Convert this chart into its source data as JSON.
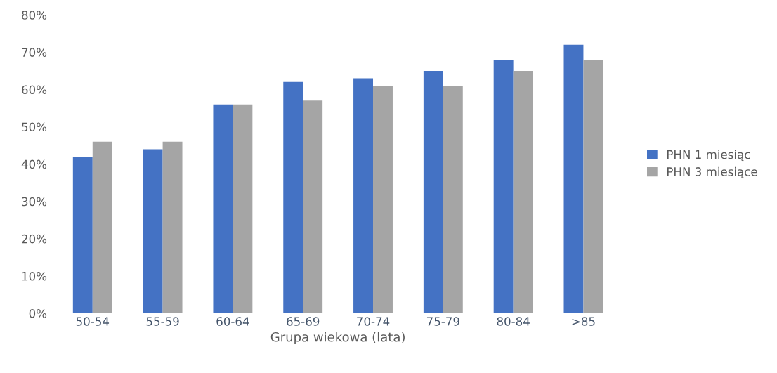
{
  "chart_data": {
    "type": "bar",
    "xlabel": "Grupa wiekowa (lata)",
    "categories": [
      "50-54",
      "55-59",
      "60-64",
      "65-69",
      "70-74",
      "75-79",
      "80-84",
      ">85"
    ],
    "series": [
      {
        "name": "PHN 1 miesiąc",
        "color": "#4472c4",
        "values": [
          42,
          44,
          56,
          62,
          63,
          65,
          68,
          72
        ]
      },
      {
        "name": "PHN 3 miesiące",
        "color": "#a5a5a5",
        "values": [
          46,
          46,
          56,
          57,
          61,
          61,
          65,
          68
        ]
      }
    ],
    "ylim": [
      0,
      80
    ],
    "yticks": [
      {
        "value": 0,
        "label": "0%"
      },
      {
        "value": 10,
        "label": "10%"
      },
      {
        "value": 20,
        "label": "20%"
      },
      {
        "value": 30,
        "label": "30%"
      },
      {
        "value": 40,
        "label": "40%"
      },
      {
        "value": 50,
        "label": "50%"
      },
      {
        "value": 60,
        "label": "60%"
      },
      {
        "value": 70,
        "label": "70%"
      },
      {
        "value": 80,
        "label": "80%"
      }
    ],
    "grid": false,
    "legend": "right"
  }
}
